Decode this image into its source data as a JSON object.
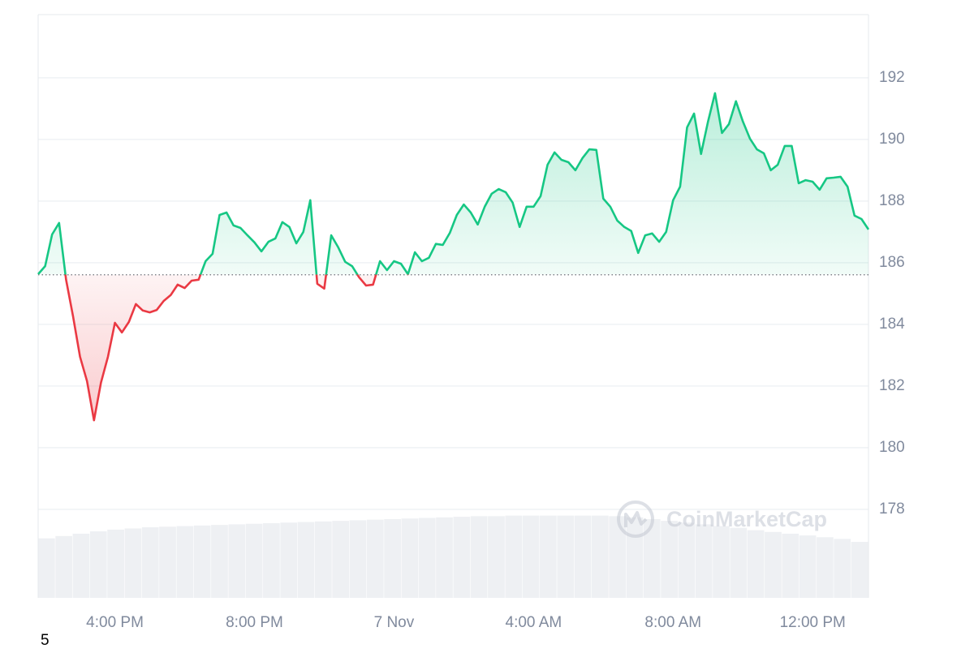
{
  "chart_data": {
    "type": "line",
    "categories": [
      null,
      null,
      null,
      null,
      null,
      null,
      null,
      null,
      null,
      null,
      null,
      "4:00 PM",
      null,
      null,
      null,
      null,
      null,
      null,
      null,
      null,
      null,
      null,
      null,
      null,
      null,
      null,
      null,
      null,
      null,
      null,
      null,
      "8:00 PM",
      null,
      null,
      null,
      null,
      null,
      null,
      null,
      null,
      null,
      null,
      null,
      null,
      null,
      null,
      null,
      null,
      null,
      null,
      null,
      "7 Nov",
      null,
      null,
      null,
      null,
      null,
      null,
      null,
      null,
      null,
      null,
      null,
      null,
      null,
      null,
      null,
      null,
      null,
      null,
      null,
      "4:00 AM",
      null,
      null,
      null,
      null,
      null,
      null,
      null,
      null,
      null,
      null,
      null,
      null,
      null,
      null,
      null,
      null,
      null,
      null,
      null,
      "8:00 AM",
      null,
      null,
      null,
      null,
      null,
      null,
      null,
      null,
      null,
      null,
      null,
      null,
      null,
      null,
      null,
      null,
      null,
      null,
      null,
      "12:00 PM",
      null,
      null,
      null,
      null,
      null,
      null,
      null,
      null
    ],
    "values": [
      185.63,
      185.89,
      186.92,
      187.29,
      185.45,
      184.26,
      182.95,
      182.16,
      180.89,
      182.11,
      182.95,
      184.05,
      183.74,
      184.08,
      184.66,
      184.45,
      184.39,
      184.47,
      184.76,
      184.95,
      185.29,
      185.18,
      185.42,
      185.45,
      186.05,
      186.29,
      187.55,
      187.63,
      187.21,
      187.13,
      186.89,
      186.66,
      186.37,
      186.68,
      186.79,
      187.32,
      187.16,
      186.63,
      187.0,
      188.03,
      185.32,
      185.16,
      186.89,
      186.5,
      186.03,
      185.89,
      185.53,
      185.26,
      185.29,
      186.05,
      185.76,
      186.05,
      185.97,
      185.63,
      186.34,
      186.05,
      186.16,
      186.61,
      186.58,
      186.97,
      187.55,
      187.89,
      187.63,
      187.24,
      187.82,
      188.24,
      188.39,
      188.29,
      187.95,
      187.16,
      187.82,
      187.82,
      188.16,
      189.18,
      189.58,
      189.34,
      189.26,
      189.0,
      189.39,
      189.68,
      189.66,
      188.08,
      187.82,
      187.37,
      187.16,
      187.03,
      186.32,
      186.89,
      186.95,
      186.68,
      187.0,
      188.03,
      188.47,
      190.39,
      190.84,
      189.53,
      190.58,
      191.5,
      190.21,
      190.5,
      191.24,
      190.58,
      190.03,
      189.68,
      189.55,
      189.0,
      189.18,
      189.79,
      189.79,
      188.58,
      188.68,
      188.63,
      188.37,
      188.74,
      188.76,
      188.79,
      188.47,
      187.53,
      187.42,
      187.08
    ],
    "baseline": 185.61,
    "color_up": "#16c784",
    "color_down": "#ea3943",
    "ylim": [
      175.13,
      194.05
    ],
    "yticks": [
      178,
      180,
      182,
      184,
      186,
      188,
      190,
      192
    ],
    "grid": true,
    "volume": {
      "color": "#eef0f3",
      "axis": "y2",
      "values": [
        10.2,
        10.6,
        11.0,
        11.4,
        11.7,
        11.9,
        12.1,
        12.2,
        12.3,
        12.4,
        12.5,
        12.6,
        12.7,
        12.8,
        12.9,
        13.0,
        13.1,
        13.2,
        13.3,
        13.4,
        13.5,
        13.6,
        13.7,
        13.8,
        13.9,
        14.0,
        14.0,
        14.1,
        14.1,
        14.1,
        14.1,
        14.1,
        14.1,
        14.0,
        13.8,
        13.5,
        13.2,
        12.9,
        12.6,
        12.3,
        12.0,
        11.6,
        11.3,
        11.0,
        10.7,
        10.4,
        10.1,
        9.6
      ]
    },
    "y2lim": [
      0,
      100
    ],
    "watermark": "CoinMarketCap",
    "corner_label": "5"
  }
}
